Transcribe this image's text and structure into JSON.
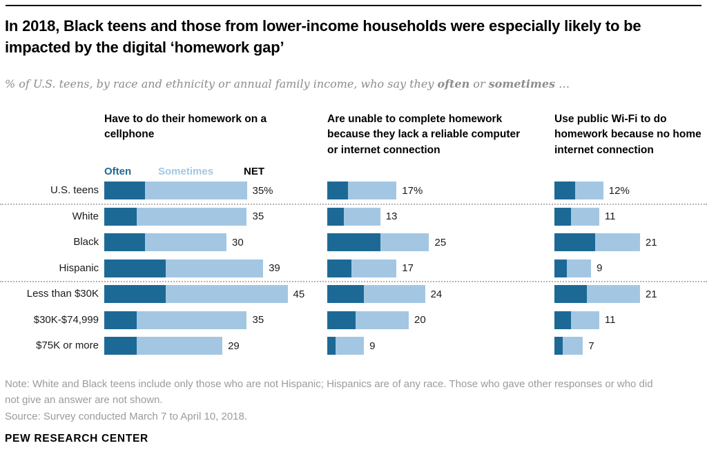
{
  "header": {
    "title": "In 2018, Black teens and those from lower-income households were especially likely to be impacted by the digital ‘homework gap’",
    "subtitle": {
      "prefix": "% of U.S. teens, by race and ethnicity or annual family income, who say they ",
      "bold_often": "often",
      "mid": " or ",
      "bold_sometimes": "sometimes",
      "suffix": " …"
    }
  },
  "legend": {
    "often": "Often",
    "sometimes": "Sometimes",
    "net": "NET"
  },
  "colors": {
    "often": "#1d6996",
    "sometimes": "#a3c7e3"
  },
  "chart_data": {
    "type": "bar",
    "stacked": true,
    "orientation": "horizontal",
    "unit": "%",
    "xlim": [
      0,
      50
    ],
    "grid": false,
    "legend_position": "above-first-panel",
    "series_names": [
      "Often",
      "Sometimes"
    ],
    "categories": [
      "U.S. teens",
      "White",
      "Black",
      "Hispanic",
      "Less than $30K",
      "$30K-$74,999",
      "$75K or more"
    ],
    "group_separators_after": [
      "U.S. teens",
      "Hispanic"
    ],
    "panels": [
      {
        "title": "Have to do their homework on a cellphone",
        "net": [
          35,
          35,
          30,
          39,
          45,
          35,
          29
        ],
        "net_labels": [
          "35%",
          "35",
          "30",
          "39",
          "45",
          "35",
          "29"
        ],
        "often": [
          10,
          8,
          10,
          15,
          15,
          8,
          8
        ],
        "sometimes": [
          25,
          27,
          20,
          24,
          30,
          27,
          21
        ]
      },
      {
        "title": "Are unable to complete homework because they lack a reliable computer or internet connection",
        "net": [
          17,
          13,
          25,
          17,
          24,
          20,
          9
        ],
        "net_labels": [
          "17%",
          "13",
          "25",
          "17",
          "24",
          "20",
          "9"
        ],
        "often": [
          5,
          4,
          13,
          6,
          9,
          7,
          2
        ],
        "sometimes": [
          12,
          9,
          12,
          11,
          15,
          13,
          7
        ]
      },
      {
        "title": "Use public Wi-Fi to do homework because no home internet connection",
        "net": [
          12,
          11,
          21,
          9,
          21,
          11,
          7
        ],
        "net_labels": [
          "12%",
          "11",
          "21",
          "9",
          "21",
          "11",
          "7"
        ],
        "often": [
          5,
          4,
          10,
          3,
          8,
          4,
          2
        ],
        "sometimes": [
          7,
          7,
          11,
          6,
          13,
          7,
          5
        ]
      }
    ]
  },
  "footer": {
    "note": "Note: White and Black teens include only those who are not Hispanic; Hispanics are of any race. Those who gave other responses or who did not give an answer are not shown.",
    "source": "Source: Survey conducted March 7 to April 10, 2018.",
    "brand": "PEW RESEARCH CENTER"
  }
}
